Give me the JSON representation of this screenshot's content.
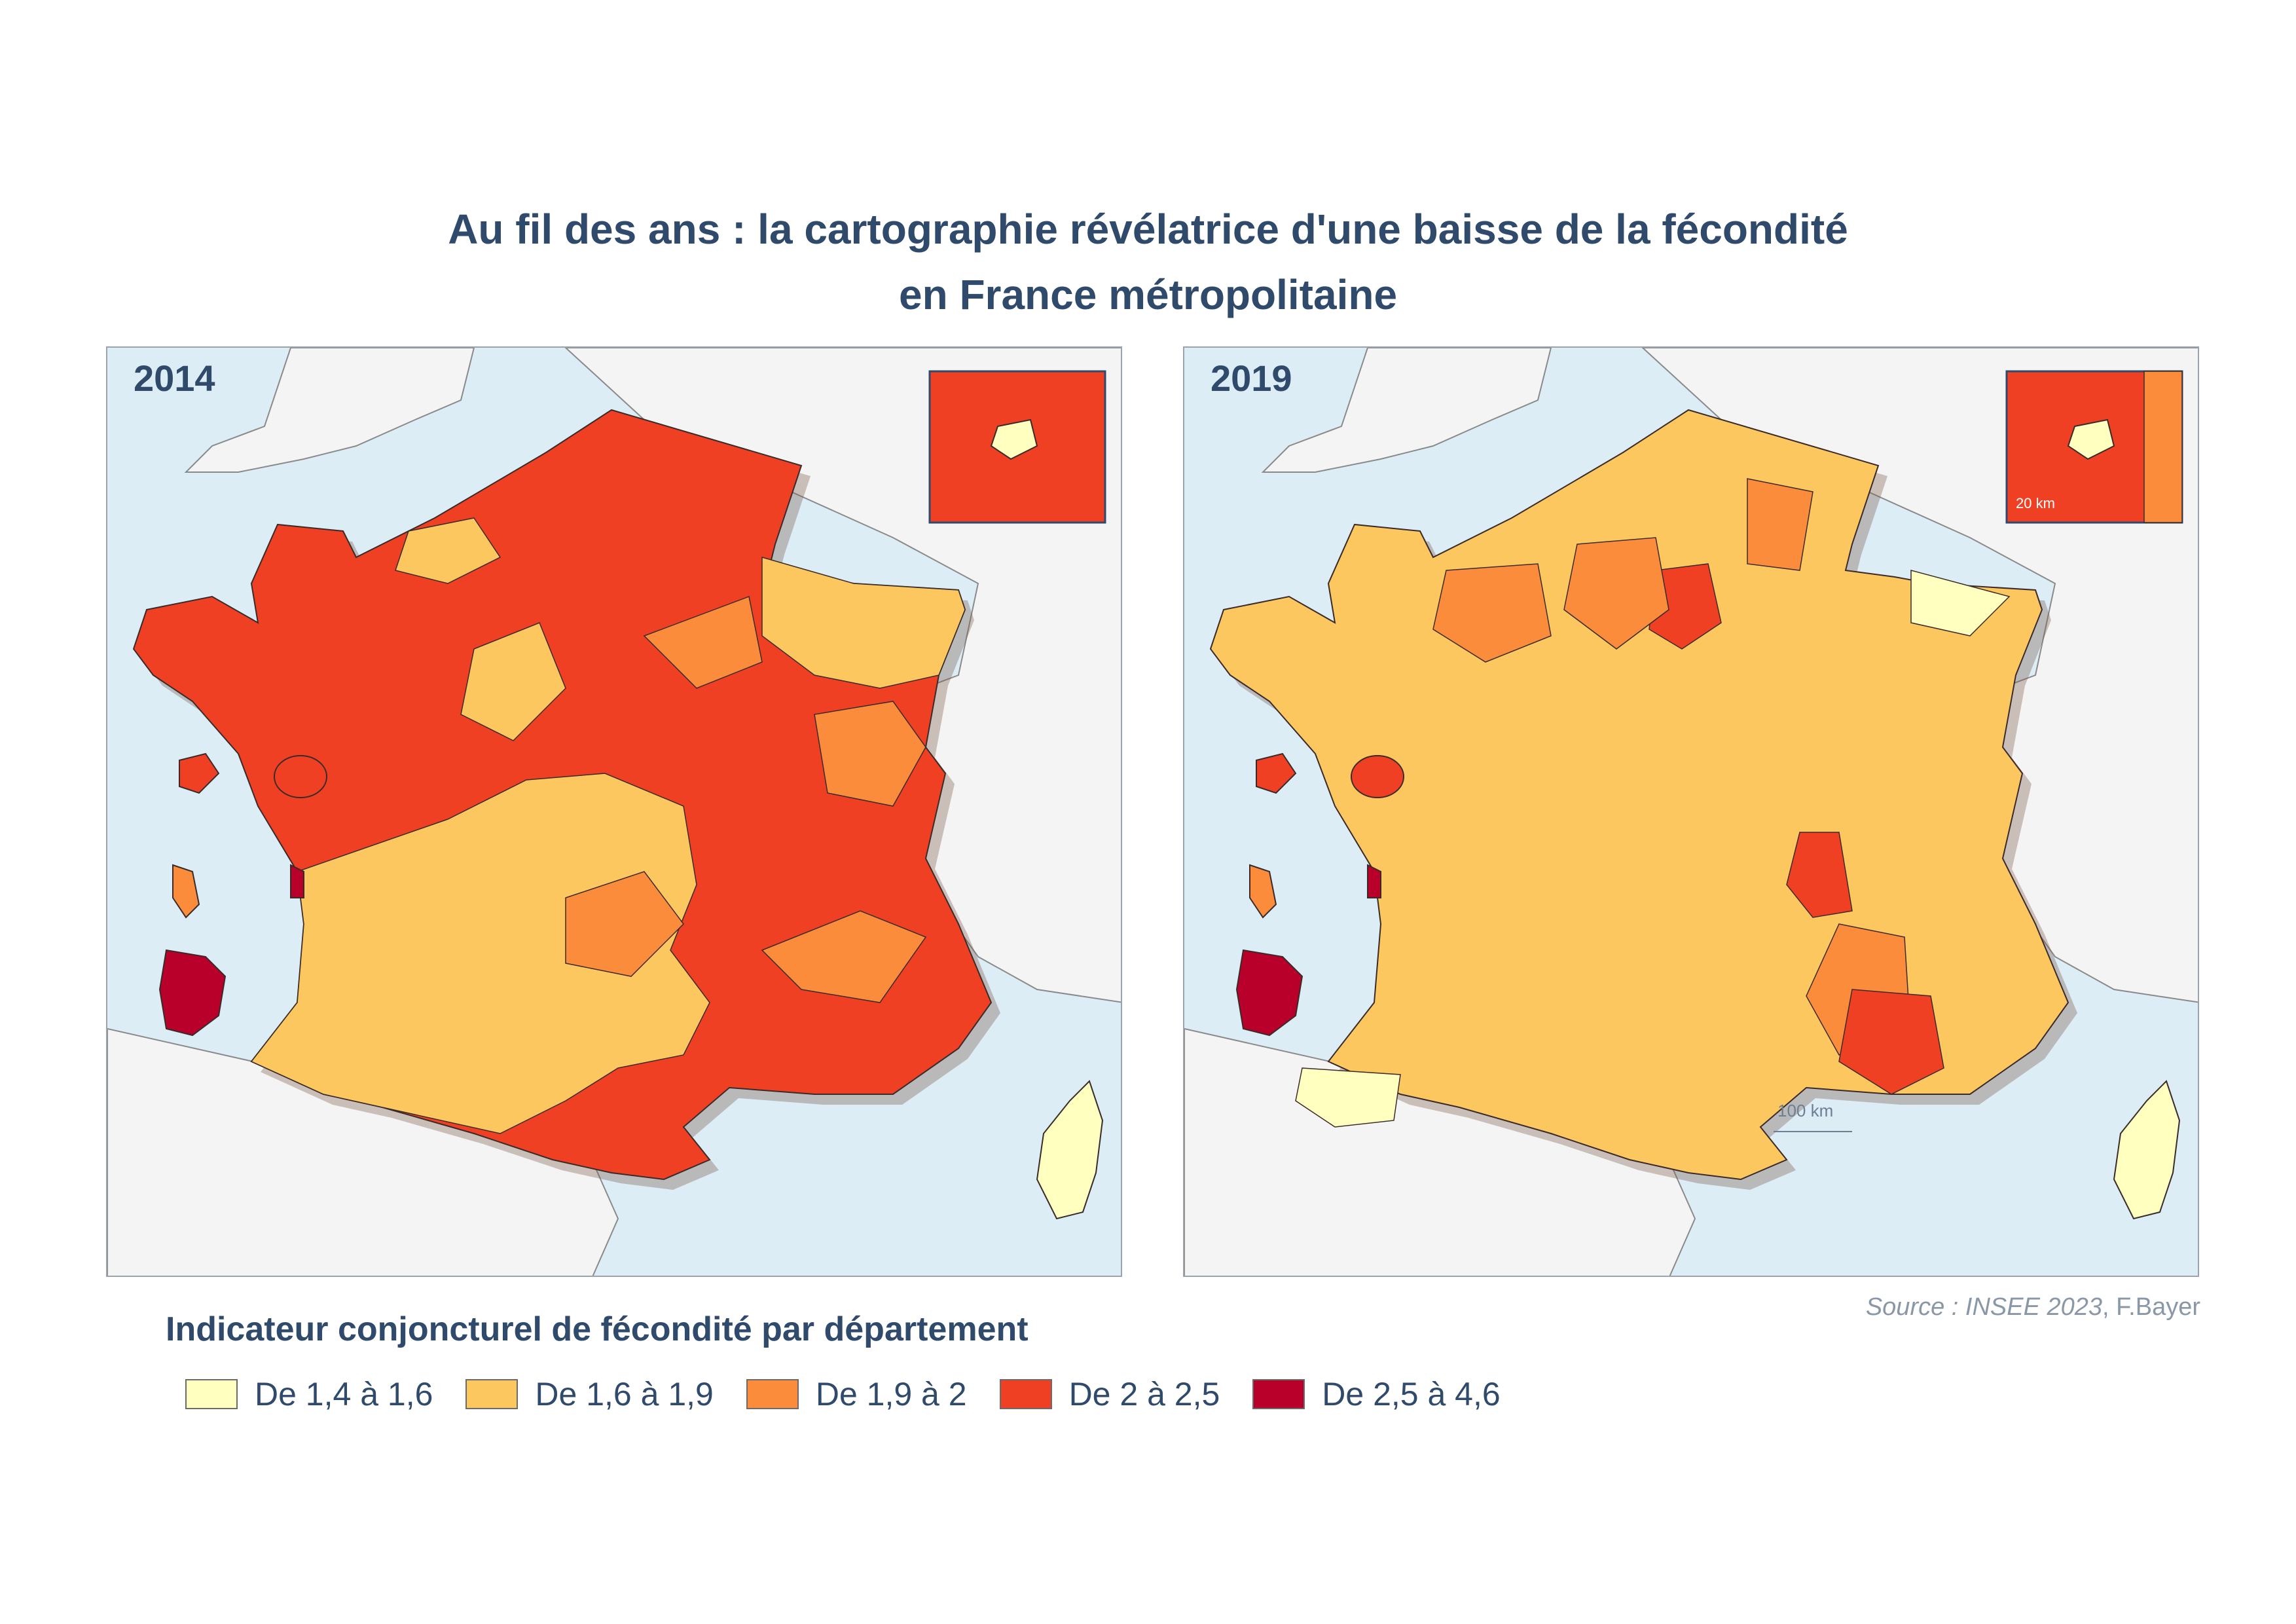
{
  "title": {
    "line1": "Au fil des ans : la cartographie révélatrice d'une baisse de la fécondité",
    "line2": "en France métropolitaine"
  },
  "maps": [
    {
      "year": "2014",
      "scale_label": "",
      "inset_scale_label": ""
    },
    {
      "year": "2019",
      "scale_label": "100 km",
      "inset_scale_label": "20 km"
    }
  ],
  "source": {
    "italic": "Source : INSEE 2023",
    "author": ", F.Bayer"
  },
  "legend": {
    "title": "Indicateur conjoncturel de fécondité par département",
    "classes": [
      {
        "label": "De 1,4 à 1,6",
        "color": "#ffffbf"
      },
      {
        "label": "De 1,6 à 1,9",
        "color": "#fdc75f"
      },
      {
        "label": "De 1,9 à 2",
        "color": "#fb8c3c"
      },
      {
        "label": "De 2 à 2,5",
        "color": "#ef4023"
      },
      {
        "label": "De 2,5 à 4,6",
        "color": "#b8002a"
      }
    ]
  },
  "colors": {
    "sea": "#dcedf5",
    "land_neighbours": "#f4f4f4",
    "title": "#2f4a6b"
  }
}
